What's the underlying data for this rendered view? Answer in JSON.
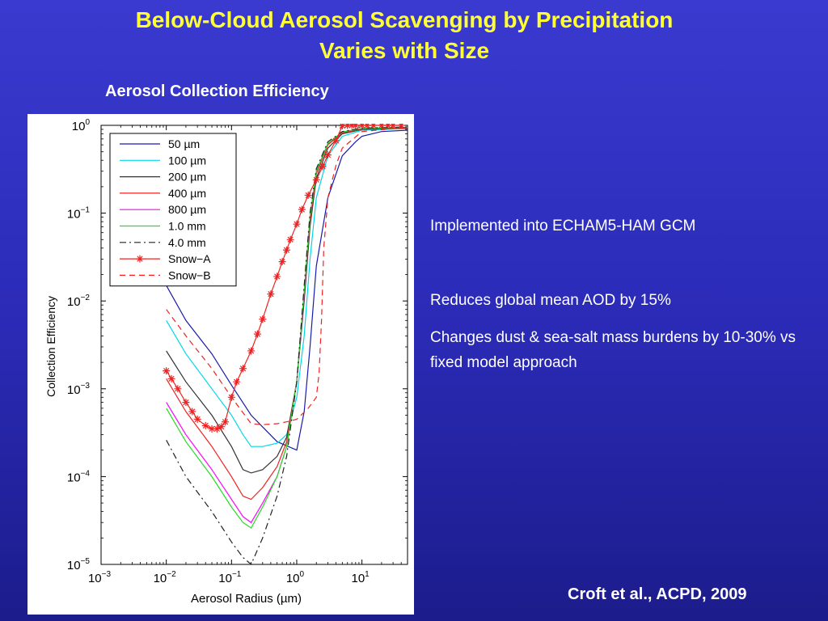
{
  "slide": {
    "title_line1": "Below-Cloud Aerosol Scavenging by Precipitation",
    "title_line2": "Varies with Size",
    "subtitle": "Aerosol Collection Efficiency",
    "bullets": [
      "Implemented into ECHAM5-HAM GCM",
      "Reduces global mean AOD by 15%",
      "Changes dust & sea-salt mass burdens by 10-30% vs fixed model approach"
    ],
    "citation": "Croft et al., ACPD, 2009"
  },
  "colors": {
    "background": "#2b2bb8",
    "title": "#ffff33",
    "text": "#ffffff"
  },
  "chart_data": {
    "type": "line",
    "xlabel": "Aerosol Radius (µm)",
    "ylabel": "Collection Efficiency",
    "xscale": "log",
    "yscale": "log",
    "xlim": [
      0.001,
      50
    ],
    "ylim": [
      1e-05,
      1
    ],
    "xticks": [
      0.001,
      0.01,
      0.1,
      1,
      10
    ],
    "xtick_labels": [
      [
        "10",
        "−3"
      ],
      [
        "10",
        "−2"
      ],
      [
        "10",
        "−1"
      ],
      [
        "10",
        "0"
      ],
      [
        "10",
        "1"
      ]
    ],
    "yticks": [
      1e-05,
      0.0001,
      0.001,
      0.01,
      0.1,
      1
    ],
    "ytick_labels": [
      [
        "10",
        "−5"
      ],
      [
        "10",
        "−4"
      ],
      [
        "10",
        "−3"
      ],
      [
        "10",
        "−2"
      ],
      [
        "10",
        "−1"
      ],
      [
        "10",
        "0"
      ]
    ],
    "legend_position": "top-left",
    "series": [
      {
        "name": "50 µm",
        "color": "#1a1aaa",
        "dash": "",
        "marker": "",
        "x": [
          0.01,
          0.02,
          0.05,
          0.1,
          0.2,
          0.5,
          1.0,
          1.3,
          1.6,
          2.0,
          3.0,
          5.0,
          8.0,
          10,
          20,
          50
        ],
        "y": [
          0.015,
          0.006,
          0.0025,
          0.0011,
          0.0005,
          0.00025,
          0.0002,
          0.00055,
          0.003,
          0.025,
          0.15,
          0.45,
          0.65,
          0.75,
          0.85,
          0.88
        ]
      },
      {
        "name": "100 µm",
        "color": "#00d8e8",
        "dash": "",
        "marker": "",
        "x": [
          0.01,
          0.02,
          0.05,
          0.1,
          0.15,
          0.2,
          0.3,
          0.5,
          0.7,
          1.0,
          1.3,
          1.6,
          2.0,
          3.0,
          5.0,
          10,
          50
        ],
        "y": [
          0.006,
          0.0025,
          0.001,
          0.0005,
          0.0003,
          0.00022,
          0.00022,
          0.00024,
          0.0003,
          0.0008,
          0.004,
          0.03,
          0.15,
          0.45,
          0.75,
          0.88,
          0.92
        ]
      },
      {
        "name": "200 µm",
        "color": "#333333",
        "dash": "",
        "marker": "",
        "x": [
          0.01,
          0.02,
          0.05,
          0.1,
          0.15,
          0.2,
          0.3,
          0.5,
          0.7,
          1.0,
          1.3,
          1.6,
          2.0,
          3.0,
          5.0,
          10,
          50
        ],
        "y": [
          0.0027,
          0.0012,
          0.0005,
          0.00022,
          0.00012,
          0.00011,
          0.00012,
          0.00017,
          0.00028,
          0.0012,
          0.01,
          0.07,
          0.25,
          0.55,
          0.8,
          0.9,
          0.93
        ]
      },
      {
        "name": "400 µm",
        "color": "#ee2222",
        "dash": "",
        "marker": "",
        "x": [
          0.01,
          0.02,
          0.05,
          0.1,
          0.15,
          0.2,
          0.3,
          0.5,
          0.7,
          1.0,
          1.3,
          1.6,
          2.0,
          3.0,
          5.0,
          10,
          50
        ],
        "y": [
          0.0013,
          0.00055,
          0.00022,
          0.0001,
          6e-05,
          5.5e-05,
          7.5e-05,
          0.00013,
          0.00025,
          0.0012,
          0.012,
          0.08,
          0.28,
          0.6,
          0.82,
          0.91,
          0.94
        ]
      },
      {
        "name": "800 µm",
        "color": "#ff00ff",
        "dash": "",
        "marker": "",
        "x": [
          0.01,
          0.02,
          0.05,
          0.1,
          0.15,
          0.2,
          0.3,
          0.5,
          0.7,
          1.0,
          1.3,
          1.6,
          2.0,
          3.0,
          5.0,
          10,
          50
        ],
        "y": [
          0.0007,
          0.0003,
          0.00012,
          5.5e-05,
          3.5e-05,
          3e-05,
          5e-05,
          0.0001,
          0.00022,
          0.0012,
          0.012,
          0.09,
          0.3,
          0.62,
          0.84,
          0.92,
          0.95
        ]
      },
      {
        "name": "1.0 mm",
        "color": "#22dd22",
        "dash": "",
        "marker": "",
        "x": [
          0.01,
          0.02,
          0.05,
          0.1,
          0.15,
          0.2,
          0.3,
          0.5,
          0.7,
          1.0,
          1.3,
          1.6,
          2.0,
          3.0,
          5.0,
          10,
          50
        ],
        "y": [
          0.0006,
          0.00025,
          0.0001,
          4.5e-05,
          3e-05,
          2.6e-05,
          4.5e-05,
          0.0001,
          0.00022,
          0.0012,
          0.013,
          0.09,
          0.3,
          0.62,
          0.84,
          0.92,
          0.95
        ]
      },
      {
        "name": "4.0 mm",
        "color": "#222222",
        "dash": "8 4 2 4",
        "marker": "",
        "x": [
          0.01,
          0.02,
          0.05,
          0.1,
          0.15,
          0.2,
          0.3,
          0.5,
          0.7,
          1.0,
          1.3,
          1.6,
          2.0,
          3.0,
          5.0,
          10,
          50
        ],
        "y": [
          0.00026,
          0.0001,
          4e-05,
          1.8e-05,
          1.2e-05,
          1e-05,
          2e-05,
          6e-05,
          0.00017,
          0.0012,
          0.015,
          0.1,
          0.32,
          0.65,
          0.85,
          0.93,
          0.96
        ]
      },
      {
        "name": "Snow−A",
        "color": "#ee2222",
        "dash": "",
        "marker": "star",
        "x": [
          0.01,
          0.012,
          0.015,
          0.02,
          0.025,
          0.03,
          0.04,
          0.05,
          0.06,
          0.07,
          0.08,
          0.1,
          0.12,
          0.15,
          0.2,
          0.25,
          0.3,
          0.4,
          0.5,
          0.6,
          0.7,
          0.8,
          1.0,
          1.2,
          1.5,
          2.0,
          2.5,
          3.0,
          4.0,
          5.0,
          6.0,
          7.0,
          8.0,
          10,
          12,
          15,
          20,
          25,
          30,
          40
        ],
        "y": [
          0.0016,
          0.0013,
          0.001,
          0.0007,
          0.00055,
          0.00045,
          0.00038,
          0.00035,
          0.00035,
          0.00037,
          0.00042,
          0.0008,
          0.0012,
          0.0017,
          0.0027,
          0.0042,
          0.0062,
          0.012,
          0.019,
          0.028,
          0.038,
          0.05,
          0.075,
          0.11,
          0.16,
          0.24,
          0.34,
          0.46,
          0.67,
          0.99,
          1,
          1,
          1,
          1,
          1,
          1,
          1,
          1,
          1,
          1
        ]
      },
      {
        "name": "Snow−B",
        "color": "#ee2222",
        "dash": "7 5",
        "marker": "",
        "x": [
          0.01,
          0.02,
          0.05,
          0.1,
          0.2,
          0.3,
          0.5,
          0.7,
          1.0,
          1.5,
          2.0,
          2.2,
          2.4,
          2.6,
          3.0,
          4.0,
          5.0,
          10,
          50
        ],
        "y": [
          0.008,
          0.004,
          0.0017,
          0.0008,
          0.0004,
          0.00039,
          0.0004,
          0.00042,
          0.00045,
          0.0006,
          0.0008,
          0.0015,
          0.006,
          0.04,
          0.15,
          0.35,
          0.55,
          0.85,
          0.95
        ]
      }
    ]
  }
}
